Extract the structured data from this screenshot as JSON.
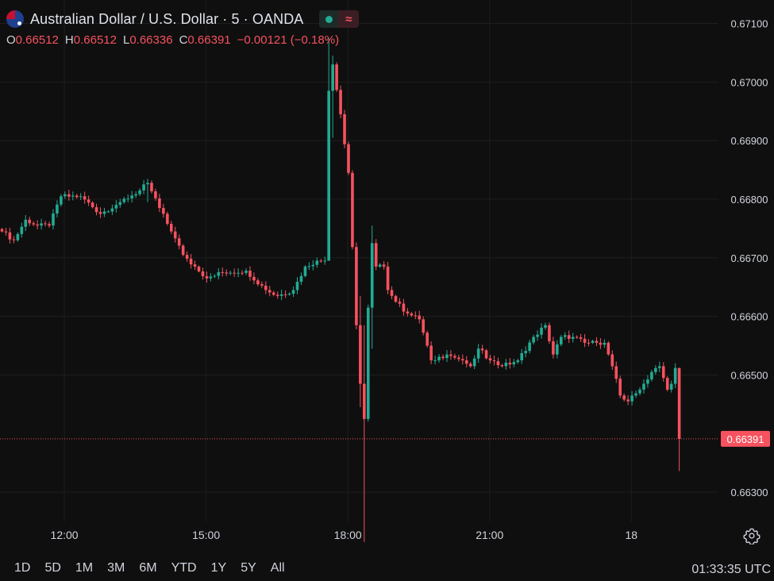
{
  "header": {
    "title": "Australian Dollar / U.S. Dollar · 5 · OANDA",
    "status_icon": "market-open-dot",
    "wave_icon": "≈"
  },
  "ohlc": {
    "o_label": "O",
    "o_value": "0.66512",
    "h_label": "H",
    "h_value": "0.66512",
    "l_label": "L",
    "l_value": "0.66336",
    "c_label": "C",
    "c_value": "0.66391",
    "change": "−0.00121 (−0.18%)"
  },
  "footer": {
    "ranges": [
      "1D",
      "5D",
      "1M",
      "3M",
      "6M",
      "YTD",
      "1Y",
      "5Y",
      "All"
    ],
    "clock": "01:33:35 UTC"
  },
  "colors": {
    "background": "#0f0f0f",
    "grid": "#1e1e1e",
    "up": "#22ab94",
    "down": "#f7525f",
    "text": "#d1d4dc"
  },
  "chart_data": {
    "type": "candlestick",
    "title": "Australian Dollar / U.S. Dollar · 5 · OANDA",
    "ylim": [
      0.6625,
      0.6714
    ],
    "y_ticks": [
      "0.67100",
      "0.67000",
      "0.66900",
      "0.66800",
      "0.66700",
      "0.66600",
      "0.66500",
      "0.66300"
    ],
    "y_tick_values": [
      0.671,
      0.67,
      0.669,
      0.668,
      0.667,
      0.666,
      0.665,
      0.663
    ],
    "x_ticks": [
      "12:00",
      "15:00",
      "18:00",
      "21:00",
      "18"
    ],
    "x_tick_index": [
      11,
      47,
      83,
      119,
      155
    ],
    "last_price": 0.66391,
    "last_price_label": "0.66391",
    "keyframes": [
      [
        0,
        0.66745
      ],
      [
        3,
        0.6673
      ],
      [
        6,
        0.66765
      ],
      [
        9,
        0.66755
      ],
      [
        12,
        0.66755
      ],
      [
        15,
        0.66805
      ],
      [
        20,
        0.66805
      ],
      [
        25,
        0.66775
      ],
      [
        30,
        0.66795
      ],
      [
        35,
        0.66815
      ],
      [
        37,
        0.66828
      ],
      [
        40,
        0.66785
      ],
      [
        43,
        0.66745
      ],
      [
        46,
        0.66705
      ],
      [
        49,
        0.66685
      ],
      [
        52,
        0.66665
      ],
      [
        56,
        0.66675
      ],
      [
        62,
        0.66678
      ],
      [
        67,
        0.66645
      ],
      [
        70,
        0.66635
      ],
      [
        74,
        0.66645
      ],
      [
        77,
        0.66685
      ],
      [
        80,
        0.66695
      ],
      [
        82,
        0.66695
      ],
      [
        83,
        0.66985
      ],
      [
        84,
        0.6703
      ],
      [
        86,
        0.66945
      ],
      [
        88,
        0.66845
      ],
      [
        90,
        0.66585
      ],
      [
        91,
        0.66485
      ],
      [
        92,
        0.66425
      ],
      [
        93,
        0.66615
      ],
      [
        94,
        0.66725
      ],
      [
        95,
        0.66685
      ],
      [
        97,
        0.66685
      ],
      [
        98,
        0.66645
      ],
      [
        100,
        0.66625
      ],
      [
        103,
        0.66605
      ],
      [
        106,
        0.66595
      ],
      [
        109,
        0.66525
      ],
      [
        113,
        0.66535
      ],
      [
        117,
        0.66525
      ],
      [
        119,
        0.66515
      ],
      [
        121,
        0.66545
      ],
      [
        124,
        0.66525
      ],
      [
        127,
        0.66515
      ],
      [
        131,
        0.66525
      ],
      [
        135,
        0.66565
      ],
      [
        138,
        0.66585
      ],
      [
        140,
        0.66535
      ],
      [
        142,
        0.66565
      ],
      [
        145,
        0.66565
      ],
      [
        148,
        0.66555
      ],
      [
        151,
        0.66555
      ],
      [
        153,
        0.66555
      ],
      [
        155,
        0.66515
      ],
      [
        157,
        0.66465
      ],
      [
        159,
        0.66455
      ],
      [
        162,
        0.66475
      ],
      [
        165,
        0.66505
      ],
      [
        167,
        0.66515
      ],
      [
        169,
        0.66475
      ],
      [
        170,
        0.66485
      ],
      [
        171,
        0.66512
      ],
      [
        172,
        0.66391
      ]
    ],
    "spikes": [
      {
        "index": 83,
        "high": 0.67075,
        "low": 0.66695
      },
      {
        "index": 84,
        "high": 0.67045,
        "low": 0.66905
      },
      {
        "index": 91,
        "high": 0.66635,
        "low": 0.66445
      },
      {
        "index": 92,
        "high": 0.66585,
        "low": 0.66215
      },
      {
        "index": 94,
        "high": 0.66755,
        "low": 0.66545
      },
      {
        "index": 37,
        "high": 0.66835,
        "low": 0.66795
      },
      {
        "index": 172,
        "high": 0.66512,
        "low": 0.66336
      }
    ]
  }
}
